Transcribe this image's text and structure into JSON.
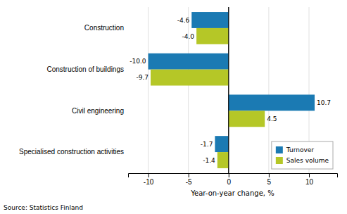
{
  "chart_data": {
    "type": "bar",
    "orientation": "horizontal",
    "categories": [
      "Construction",
      "Construction of buildings",
      "Civil engineering",
      "Specialised construction activities"
    ],
    "series": [
      {
        "name": "Turnover",
        "color": "#1b7ab3",
        "values": [
          -4.6,
          -10.0,
          10.7,
          -1.7
        ],
        "value_labels": [
          "-4.6",
          "-10.0",
          "10.7",
          "-1.7"
        ]
      },
      {
        "name": "Sales volume",
        "color": "#b5c727",
        "values": [
          -4.0,
          -9.7,
          4.5,
          -1.4
        ],
        "value_labels": [
          "-4.0",
          "-9.7",
          "4.5",
          "-1.4"
        ]
      }
    ],
    "xlabel": "Year-on-year change, %",
    "xlim": [
      -12.5,
      13.5
    ],
    "xticks": [
      -10,
      -5,
      0,
      5,
      10
    ],
    "grid": true,
    "legend": "lower right",
    "data_labels": true,
    "source": "Source: Statistics Finland"
  }
}
